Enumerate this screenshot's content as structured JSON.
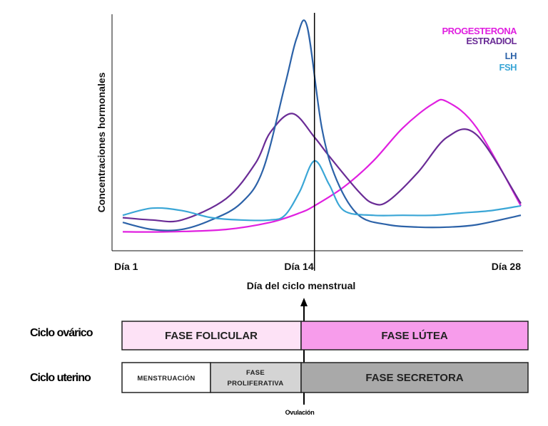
{
  "chart_data": {
    "type": "line",
    "title": "",
    "xlabel": "Día del ciclo menstrual",
    "ylabel": "Concentraciones hormonales",
    "x_ticks": [
      "Día 1",
      "Día 14",
      "Día 28"
    ],
    "xlim": [
      1,
      28
    ],
    "ylim": [
      0,
      100
    ],
    "grid": false,
    "legend_position": "top-right",
    "ovulation_day": 14,
    "series": [
      {
        "name": "PROGESTERONA",
        "color": "#e020e0",
        "x": [
          1,
          4,
          8,
          11,
          13,
          14,
          16,
          18,
          20,
          22,
          23,
          25,
          28
        ],
        "y": [
          8,
          8,
          9,
          12,
          16,
          19,
          27,
          38,
          52,
          62,
          63,
          52,
          19
        ]
      },
      {
        "name": "ESTRADIOL",
        "color": "#6a2c96",
        "x": [
          1,
          3,
          5,
          8,
          10,
          11,
          12.5,
          14,
          15,
          17,
          18,
          19,
          21,
          23,
          25,
          28
        ],
        "y": [
          14,
          13,
          13,
          22,
          37,
          50,
          58,
          48,
          40,
          25,
          20,
          21,
          33,
          48,
          49,
          20
        ]
      },
      {
        "name": "LH",
        "color": "#2c62a8",
        "x": [
          1,
          3,
          5,
          7,
          9,
          10.5,
          12,
          12.8,
          13.5,
          14.5,
          15.5,
          17,
          19,
          21,
          23,
          25,
          28
        ],
        "y": [
          12,
          9,
          9,
          13,
          20,
          34,
          70,
          90,
          95,
          52,
          30,
          15,
          11,
          10,
          10,
          11,
          15
        ]
      },
      {
        "name": "FSH",
        "color": "#3aa6d6",
        "x": [
          1,
          3,
          5,
          7,
          9,
          11,
          12,
          13,
          14,
          15,
          16,
          18,
          20,
          22,
          24,
          26,
          28
        ],
        "y": [
          15,
          18,
          17,
          14,
          13,
          13,
          15,
          25,
          38,
          28,
          17,
          15,
          15,
          15,
          16,
          17,
          19
        ]
      }
    ]
  },
  "cycles": {
    "ovarian": {
      "label": "Ciclo ovárico",
      "phases": [
        {
          "label": "FASE FOLICULAR",
          "start_day": 1,
          "end_day": 14,
          "color": "#fde2f6"
        },
        {
          "label": "FASE LÚTEA",
          "start_day": 14,
          "end_day": 28,
          "color": "#f79ceb"
        }
      ]
    },
    "uterine": {
      "label": "Ciclo uterino",
      "phases": [
        {
          "label": "MENSTRUACIÓN",
          "start_day": 1,
          "end_day": 7,
          "color": "#ffffff"
        },
        {
          "label": "FASE",
          "label2": "PROLIFERATIVA",
          "start_day": 7,
          "end_day": 14,
          "color": "#d4d4d4"
        },
        {
          "label": "FASE SECRETORA",
          "start_day": 14,
          "end_day": 28,
          "color": "#a9a9a9"
        }
      ]
    }
  },
  "ovulation_label": "Ovulación"
}
